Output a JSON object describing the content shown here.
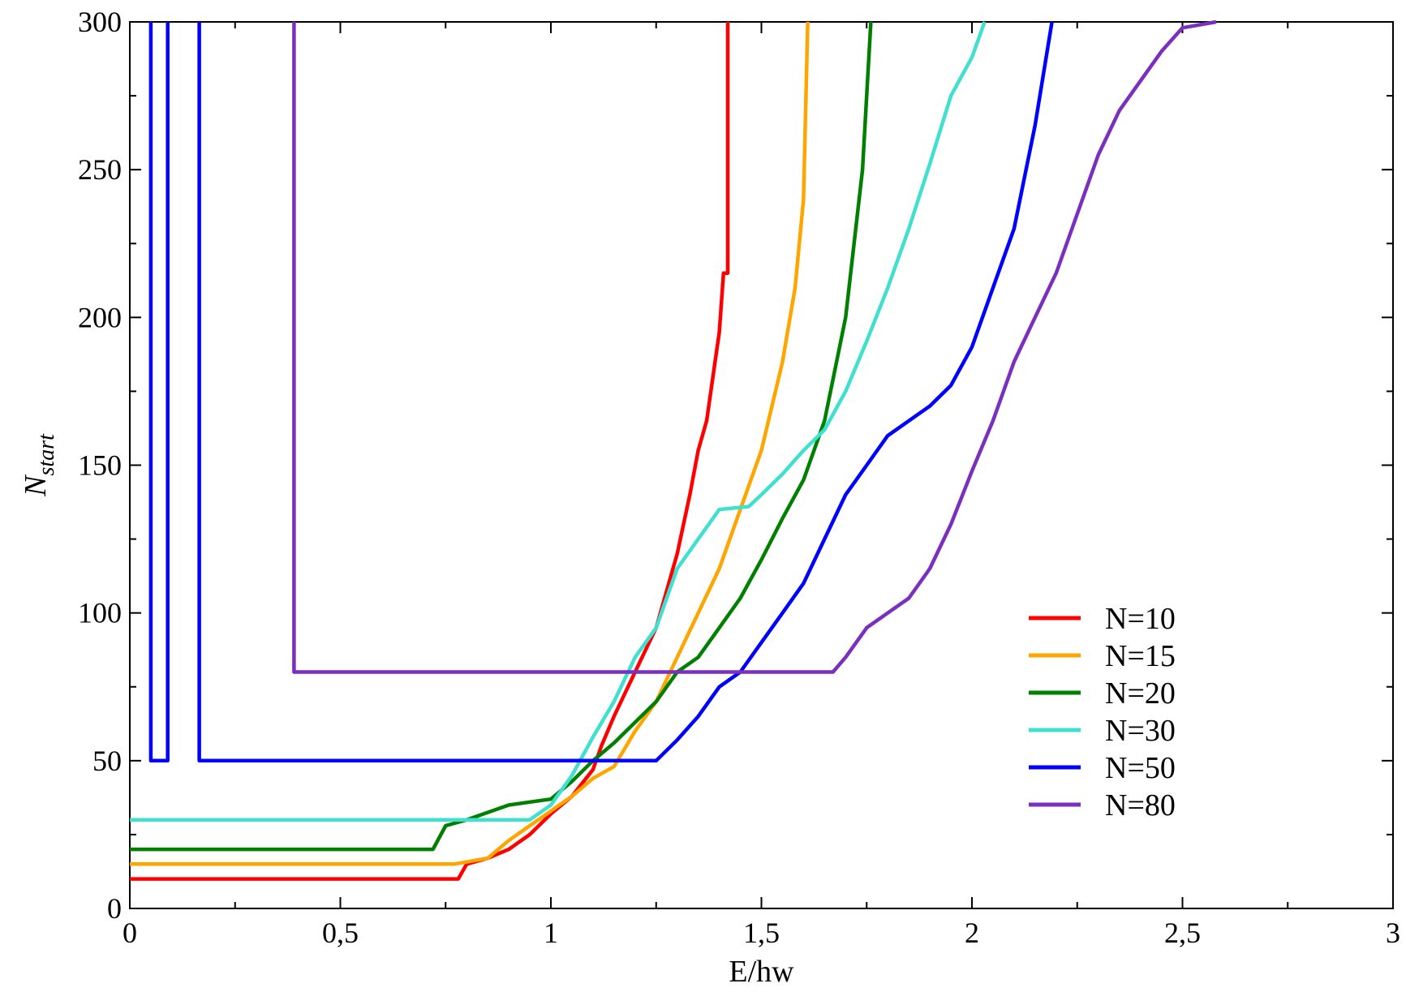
{
  "chart_data": {
    "type": "line",
    "xlabel": "E/hw",
    "ylabel": {
      "main": "N",
      "sub": "start"
    },
    "xlim": [
      0,
      3
    ],
    "ylim": [
      0,
      300
    ],
    "x_ticks": [
      0,
      0.5,
      1,
      1.5,
      2,
      2.5,
      3
    ],
    "x_tick_labels": [
      "0",
      "0,5",
      "1",
      "1,5",
      "2",
      "2,5",
      "3"
    ],
    "y_ticks": [
      0,
      50,
      100,
      150,
      200,
      250,
      300
    ],
    "y_tick_labels": [
      "0",
      "50",
      "100",
      "150",
      "200",
      "250",
      "300"
    ],
    "grid": false,
    "legend_position": "bottom-right",
    "series": [
      {
        "name": "N=10",
        "color": "#ff0000",
        "points": [
          [
            0,
            10
          ],
          [
            0.78,
            10
          ],
          [
            0.8,
            15
          ],
          [
            0.85,
            17
          ],
          [
            0.9,
            20
          ],
          [
            0.95,
            25
          ],
          [
            1.0,
            32
          ],
          [
            1.05,
            38
          ],
          [
            1.1,
            47
          ],
          [
            1.12,
            55
          ],
          [
            1.15,
            65
          ],
          [
            1.2,
            80
          ],
          [
            1.25,
            95
          ],
          [
            1.28,
            110
          ],
          [
            1.3,
            120
          ],
          [
            1.33,
            140
          ],
          [
            1.35,
            155
          ],
          [
            1.37,
            165
          ],
          [
            1.4,
            195
          ],
          [
            1.41,
            215
          ],
          [
            1.42,
            215
          ],
          [
            1.42,
            300
          ]
        ]
      },
      {
        "name": "N=15",
        "color": "#ffa500",
        "points": [
          [
            0,
            15
          ],
          [
            0.77,
            15
          ],
          [
            0.85,
            17
          ],
          [
            0.9,
            23
          ],
          [
            0.95,
            28
          ],
          [
            1.0,
            33
          ],
          [
            1.05,
            38
          ],
          [
            1.1,
            44
          ],
          [
            1.15,
            48
          ],
          [
            1.2,
            60
          ],
          [
            1.25,
            70
          ],
          [
            1.3,
            85
          ],
          [
            1.35,
            100
          ],
          [
            1.4,
            115
          ],
          [
            1.45,
            135
          ],
          [
            1.5,
            155
          ],
          [
            1.55,
            185
          ],
          [
            1.58,
            210
          ],
          [
            1.6,
            240
          ],
          [
            1.61,
            300
          ]
        ]
      },
      {
        "name": "N=20",
        "color": "#008000",
        "points": [
          [
            0,
            20
          ],
          [
            0.72,
            20
          ],
          [
            0.75,
            28
          ],
          [
            0.8,
            30
          ],
          [
            0.9,
            35
          ],
          [
            1.0,
            37
          ],
          [
            1.05,
            43
          ],
          [
            1.1,
            50
          ],
          [
            1.15,
            56
          ],
          [
            1.2,
            63
          ],
          [
            1.25,
            70
          ],
          [
            1.3,
            80
          ],
          [
            1.35,
            85
          ],
          [
            1.4,
            95
          ],
          [
            1.45,
            105
          ],
          [
            1.5,
            118
          ],
          [
            1.55,
            132
          ],
          [
            1.6,
            145
          ],
          [
            1.65,
            165
          ],
          [
            1.7,
            200
          ],
          [
            1.74,
            250
          ],
          [
            1.76,
            300
          ]
        ]
      },
      {
        "name": "N=30",
        "color": "#40e0d0",
        "points": [
          [
            0,
            30
          ],
          [
            0.95,
            30
          ],
          [
            1.0,
            35
          ],
          [
            1.05,
            45
          ],
          [
            1.1,
            58
          ],
          [
            1.15,
            70
          ],
          [
            1.2,
            85
          ],
          [
            1.25,
            95
          ],
          [
            1.3,
            115
          ],
          [
            1.35,
            125
          ],
          [
            1.4,
            135
          ],
          [
            1.47,
            136
          ],
          [
            1.5,
            140
          ],
          [
            1.55,
            147
          ],
          [
            1.6,
            155
          ],
          [
            1.65,
            162
          ],
          [
            1.7,
            175
          ],
          [
            1.75,
            192
          ],
          [
            1.8,
            210
          ],
          [
            1.85,
            230
          ],
          [
            1.9,
            252
          ],
          [
            1.95,
            275
          ],
          [
            2.0,
            288
          ],
          [
            2.03,
            300
          ]
        ]
      },
      {
        "name": "N=50",
        "color": "#0000ff",
        "segments": [
          [
            [
              0.05,
              300
            ],
            [
              0.05,
              50
            ],
            [
              0.09,
              50
            ],
            [
              0.09,
              300
            ]
          ],
          [
            [
              0.165,
              300
            ],
            [
              0.165,
              50
            ],
            [
              1.25,
              50
            ],
            [
              1.3,
              57
            ],
            [
              1.35,
              65
            ],
            [
              1.4,
              75
            ],
            [
              1.45,
              80
            ],
            [
              1.5,
              90
            ],
            [
              1.55,
              100
            ],
            [
              1.6,
              110
            ],
            [
              1.65,
              125
            ],
            [
              1.7,
              140
            ],
            [
              1.75,
              150
            ],
            [
              1.8,
              160
            ],
            [
              1.85,
              165
            ],
            [
              1.9,
              170
            ],
            [
              1.95,
              177
            ],
            [
              2.0,
              190
            ],
            [
              2.05,
              210
            ],
            [
              2.1,
              230
            ],
            [
              2.15,
              265
            ],
            [
              2.19,
              300
            ]
          ]
        ]
      },
      {
        "name": "N=80",
        "color": "#7b2fbe",
        "points": [
          [
            0.39,
            300
          ],
          [
            0.39,
            80
          ],
          [
            1.67,
            80
          ],
          [
            1.7,
            85
          ],
          [
            1.75,
            95
          ],
          [
            1.8,
            100
          ],
          [
            1.85,
            105
          ],
          [
            1.9,
            115
          ],
          [
            1.95,
            130
          ],
          [
            2.0,
            148
          ],
          [
            2.05,
            165
          ],
          [
            2.1,
            185
          ],
          [
            2.15,
            200
          ],
          [
            2.2,
            215
          ],
          [
            2.25,
            235
          ],
          [
            2.3,
            255
          ],
          [
            2.35,
            270
          ],
          [
            2.4,
            280
          ],
          [
            2.45,
            290
          ],
          [
            2.5,
            298
          ],
          [
            2.58,
            300
          ]
        ]
      }
    ]
  }
}
